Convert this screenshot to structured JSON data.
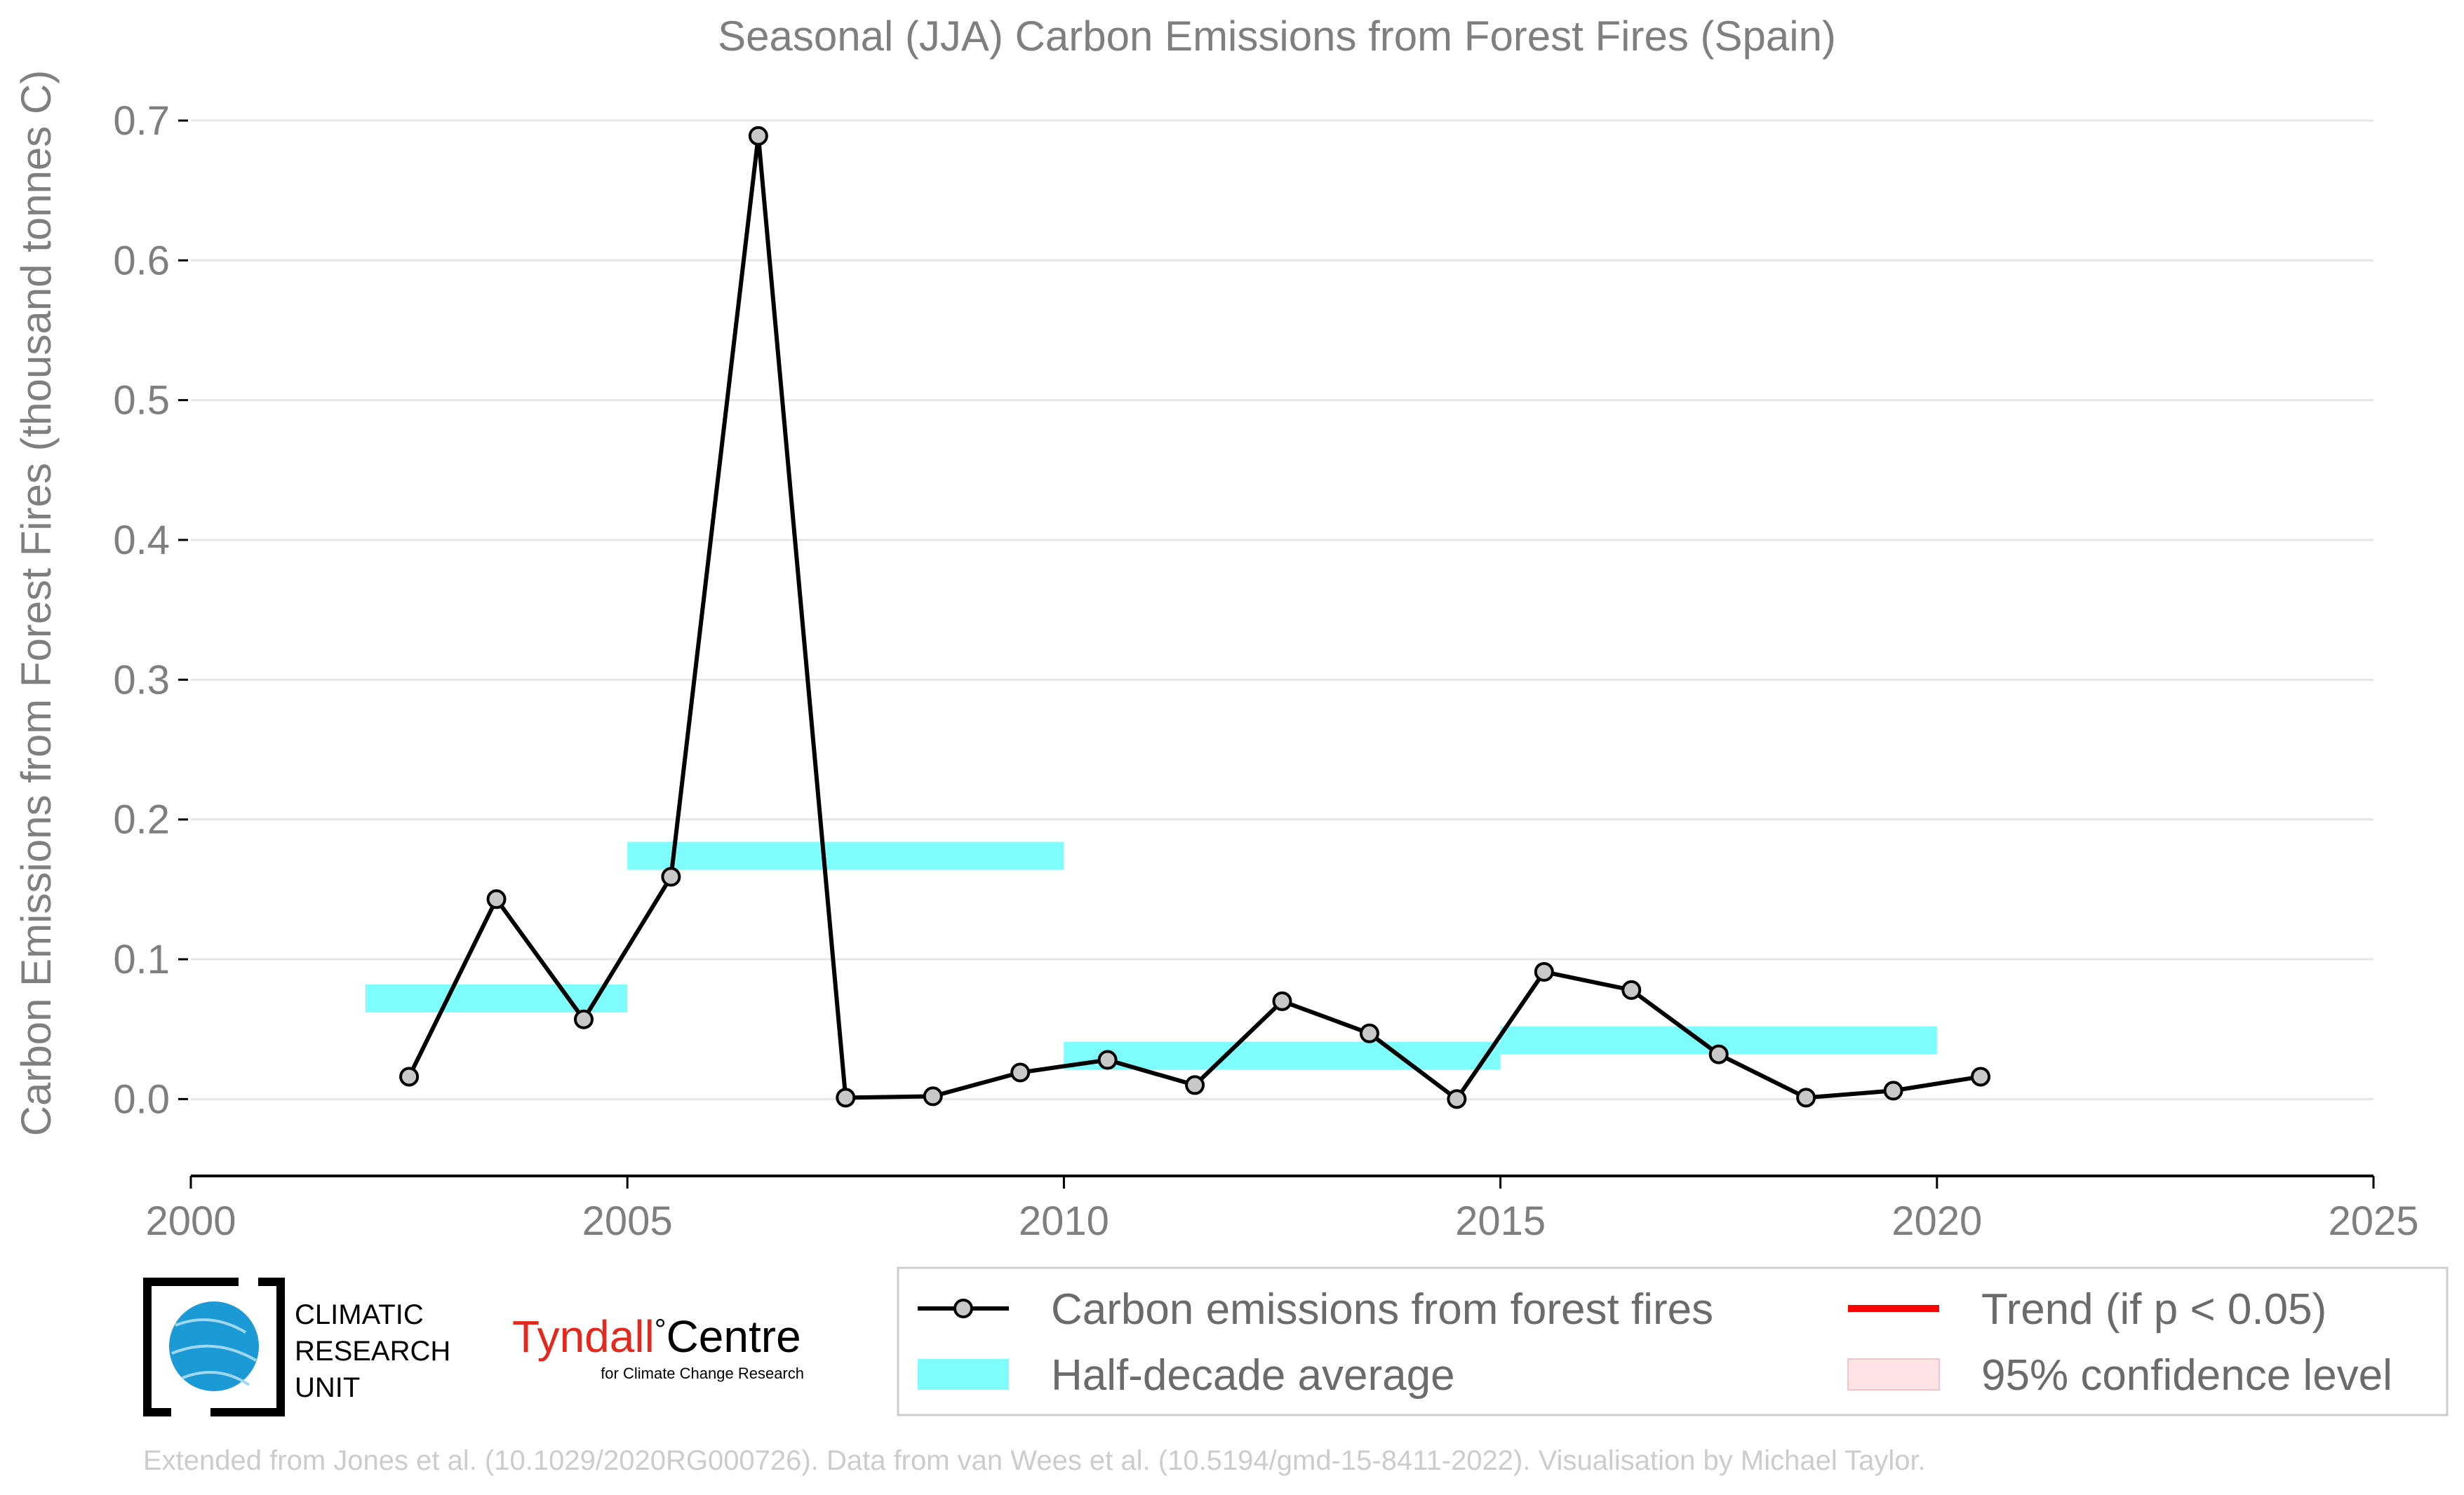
{
  "chart_data": {
    "type": "line",
    "title": "Seasonal (JJA) Carbon Emissions from Forest Fires (Spain)",
    "xlabel": "",
    "ylabel": "Carbon Emissions from Forest Fires (thousand tonnes C)",
    "xlim": [
      2000,
      2025
    ],
    "ylim": [
      -0.055,
      0.71
    ],
    "x_ticks": [
      2000,
      2005,
      2010,
      2015,
      2020,
      2025
    ],
    "y_ticks": [
      0.0,
      0.1,
      0.2,
      0.3,
      0.4,
      0.5,
      0.6,
      0.7
    ],
    "y_tick_labels": [
      "0.0",
      "0.1",
      "0.2",
      "0.3",
      "0.4",
      "0.5",
      "0.6",
      "0.7"
    ],
    "grid": "horizontal",
    "legend_position": "bottom-right",
    "series": [
      {
        "name": "Carbon emissions from forest fires",
        "color": "#000000",
        "marker_color": "#c8c8c8",
        "x": [
          2002.5,
          2003.5,
          2004.5,
          2005.5,
          2006.5,
          2007.5,
          2008.5,
          2009.5,
          2010.5,
          2011.5,
          2012.5,
          2013.5,
          2014.5,
          2015.5,
          2016.5,
          2017.5,
          2018.5,
          2019.5,
          2020.5
        ],
        "y": [
          0.016,
          0.143,
          0.057,
          0.159,
          0.689,
          0.001,
          0.002,
          0.019,
          0.028,
          0.01,
          0.07,
          0.047,
          0.0,
          0.091,
          0.078,
          0.032,
          0.001,
          0.006,
          0.016
        ]
      }
    ],
    "half_decade_average": {
      "name": "Half-decade average",
      "color": "#7ffdfd",
      "bars": [
        {
          "x_start": 2002,
          "x_end": 2005,
          "y": 0.072
        },
        {
          "x_start": 2005,
          "x_end": 2010,
          "y": 0.174
        },
        {
          "x_start": 2010,
          "x_end": 2015,
          "y": 0.031
        },
        {
          "x_start": 2015,
          "x_end": 2020,
          "y": 0.042
        }
      ]
    },
    "legend": [
      {
        "label": "Carbon emissions from forest fires",
        "kind": "line-marker",
        "color": "#000000"
      },
      {
        "label": "Half-decade average",
        "kind": "band",
        "color": "#7ffdfd"
      },
      {
        "label": "Trend (if p < 0.05)",
        "kind": "line",
        "color": "#ff0000"
      },
      {
        "label": "95% confidence level",
        "kind": "band",
        "color": "#ffe4e6"
      }
    ]
  },
  "logos": {
    "cru_lines": [
      "CLIMATIC",
      "RESEARCH",
      "UNIT"
    ],
    "tyndall_red": "Tyndall",
    "tyndall_degree": "°",
    "tyndall_black": "Centre",
    "tyndall_sub": "for Climate Change Research"
  },
  "footer": "Extended from Jones et al. (10.1029/2020RG000726). Data from van Wees et al. (10.5194/gmd-15-8411-2022). Visualisation by Michael Taylor."
}
